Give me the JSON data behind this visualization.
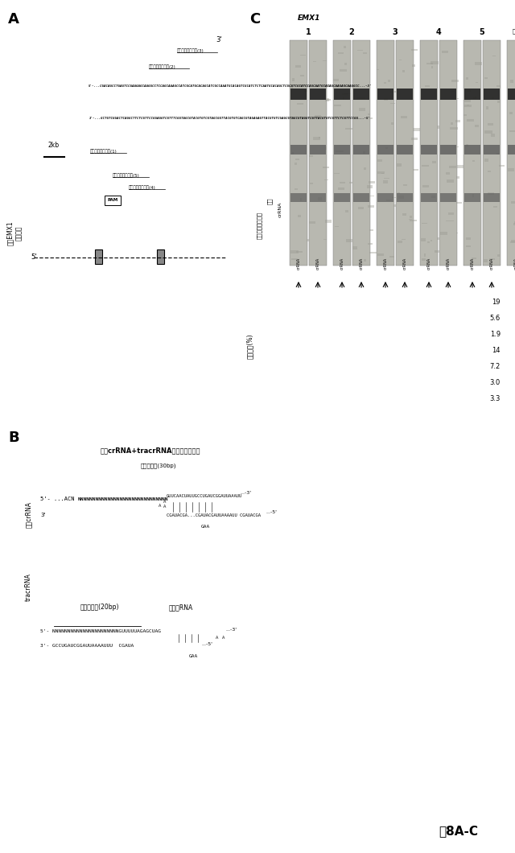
{
  "fig_width": 6.4,
  "fig_height": 10.6,
  "bg_color": "#ffffff",
  "title": "図8A-C",
  "panel_A": {
    "label": "A",
    "gene_label": "ヒトEMX1\n遺伝子座",
    "scale_label": "2kb",
    "prime5_label": "5'",
    "prime3_label": "3'",
    "pam_label": "PAM",
    "spacer_labels": [
      "プロトスペーサー(1)",
      "プロトスペーサー(2)",
      "プロトスペーサー(3)",
      "プロトスペーサー(4)",
      "プロトスペーサー(5)"
    ]
  },
  "panel_B": {
    "label": "B",
    "pre_crRNA_label": "プレcrRNA",
    "tracrRNA_label": "tracrRNA",
    "processing_title": "プレcrRNA+tracrRNAプロセッシング",
    "spacer_label": "スペーサー(30bp)",
    "guide_label": "ガイド配列(20bp)",
    "chimera_label": "キメラRNA",
    "gaa_label": "GAA"
  },
  "panel_C": {
    "label": "C",
    "emx1_label": "EMX1",
    "protospacer_label": "プロトスペーサー",
    "target_label": "標的",
    "crna_label": "crRNA",
    "indel_label": "インデル(%)",
    "control_label": "陰性",
    "groups": [
      "1",
      "2",
      "3",
      "4",
      "5"
    ],
    "indel_values_right": [
      "19",
      "5.6",
      "1.9",
      "14",
      "7.2",
      "3.0",
      "3.3"
    ]
  },
  "fig_label": "図8A-C"
}
